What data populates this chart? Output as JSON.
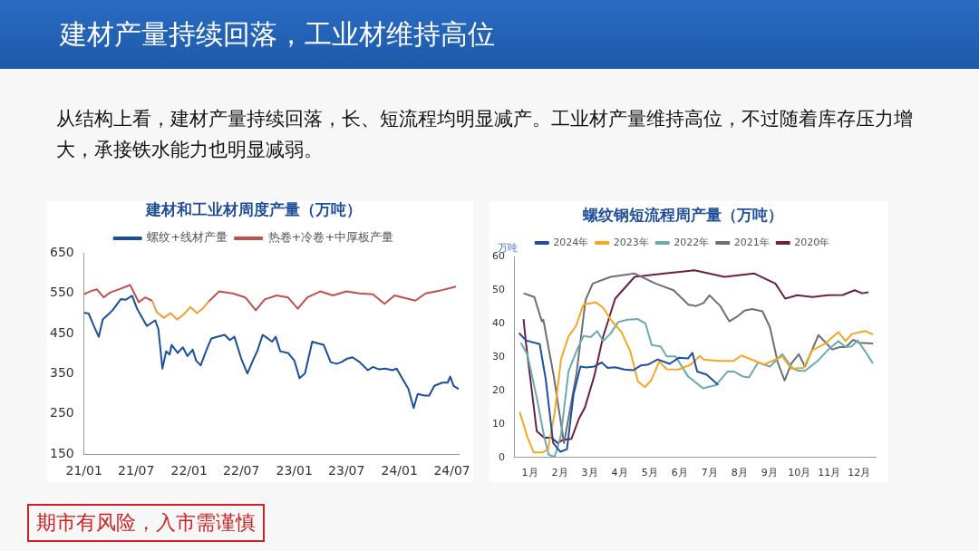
{
  "chart_data": [
    {
      "type": "other",
      "title": "建材产量持续回落，工业材维持高位",
      "subtitle": "从结构上看，建材产量持续回落，长、短流程均明显减产。工业材产量维持高位，不过随着库存压力增大，承接铁水能力也明显减弱。",
      "annotations": [
        "期市有风险，入市需谨慎"
      ]
    },
    {
      "type": "line",
      "title": "建材和工业材周度产量（万吨）",
      "legend": "top",
      "marker": "none",
      "grid": false,
      "xlim": [
        "2021-01-01",
        "2024-07-25"
      ],
      "xticks": [
        {
          "value": "2021-01",
          "label": "21/01"
        },
        {
          "value": "2021-07",
          "label": "21/07"
        },
        {
          "value": "2022-01",
          "label": "22/01"
        },
        {
          "value": "2022-07",
          "label": "22/07"
        },
        {
          "value": "2023-01",
          "label": "23/01"
        },
        {
          "value": "2023-07",
          "label": "23/07"
        },
        {
          "value": "2024-01",
          "label": "24/01"
        },
        {
          "value": "2024-07",
          "label": "24/07"
        }
      ],
      "ylim": [
        150,
        650
      ],
      "yticks": [
        150,
        250,
        350,
        450,
        550,
        650
      ],
      "series": [
        {
          "name": "螺纹+线材产量",
          "color": "#1a4f9c",
          "x": [
            "2021-01-01",
            "2021-01-17",
            "2021-02-04",
            "2021-02-21",
            "2021-03-07",
            "2021-03-25",
            "2021-04-10",
            "2021-05-09",
            "2021-05-25",
            "2021-06-17",
            "2021-07-04",
            "2021-07-22",
            "2021-08-07",
            "2021-09-05",
            "2021-09-16",
            "2021-09-30",
            "2021-10-13",
            "2021-10-25",
            "2021-11-01",
            "2021-11-22",
            "2021-12-10",
            "2021-12-26",
            "2022-01-13",
            "2022-01-25",
            "2022-02-10",
            "2022-02-28",
            "2022-03-19",
            "2022-04-07",
            "2022-05-04",
            "2022-05-22",
            "2022-06-07",
            "2022-07-01",
            "2022-07-22",
            "2022-08-10",
            "2022-08-25",
            "2022-09-13",
            "2022-10-01",
            "2022-10-16",
            "2022-10-28",
            "2022-11-13",
            "2022-12-10",
            "2023-01-01",
            "2023-01-19",
            "2023-02-07",
            "2023-03-04",
            "2023-03-22",
            "2023-04-13",
            "2023-05-07",
            "2023-05-28",
            "2023-06-13",
            "2023-07-01",
            "2023-07-22",
            "2023-08-16",
            "2023-09-13",
            "2023-10-01",
            "2023-10-22",
            "2023-11-13",
            "2023-12-07",
            "2023-12-22",
            "2024-01-10",
            "2024-02-01",
            "2024-02-19",
            "2024-03-04",
            "2024-03-28",
            "2024-04-13",
            "2024-05-01",
            "2024-05-28",
            "2024-06-16",
            "2024-06-25",
            "2024-07-07",
            "2024-07-25"
          ],
          "values": [
            502,
            500,
            469,
            442,
            485,
            497,
            508,
            536,
            534,
            544,
            512,
            489,
            469,
            483,
            461,
            363,
            406,
            398,
            422,
            402,
            416,
            394,
            410,
            383,
            371,
            406,
            438,
            442,
            447,
            434,
            442,
            387,
            351,
            383,
            406,
            447,
            438,
            430,
            442,
            406,
            402,
            383,
            339,
            351,
            430,
            426,
            422,
            379,
            375,
            379,
            387,
            391,
            379,
            359,
            367,
            361,
            363,
            359,
            363,
            339,
            312,
            265,
            300,
            296,
            296,
            320,
            328,
            328,
            343,
            320,
            312
          ]
        },
        {
          "name": "热卷+冷卷+中厚板产量",
          "color": "#c0504d",
          "x": [
            "2021-01-01",
            "2021-01-25",
            "2021-02-15",
            "2021-03-10",
            "2021-04-01",
            "2021-05-01",
            "2021-06-10",
            "2021-07-10",
            "2021-08-01",
            "2021-08-25",
            "2021-09-10",
            "2021-10-05",
            "2021-10-28",
            "2021-11-20",
            "2021-12-12",
            "2022-01-05",
            "2022-01-28",
            "2022-02-18",
            "2022-03-10",
            "2022-04-15",
            "2022-06-01",
            "2022-07-15",
            "2022-08-20",
            "2022-09-20",
            "2022-11-01",
            "2022-12-10",
            "2023-01-13",
            "2023-02-15",
            "2023-04-01",
            "2023-05-15",
            "2023-07-01",
            "2023-08-15",
            "2023-10-01",
            "2023-11-10",
            "2023-12-15",
            "2024-02-25",
            "2024-04-01",
            "2024-05-15",
            "2024-07-15"
          ],
          "values": [
            548,
            556,
            560,
            540,
            552,
            560,
            571,
            528,
            540,
            532,
            null,
            null,
            null,
            null,
            null,
            null,
            null,
            null,
            530,
            555,
            550,
            540,
            508,
            535,
            545,
            540,
            512,
            540,
            555,
            545,
            555,
            550,
            548,
            524,
            545,
            532,
            550,
            556,
            567
          ]
        },
        {
          "color": "#f0a030",
          "x": [
            "2021-08-25",
            "2021-09-10",
            "2021-10-05",
            "2021-10-28",
            "2021-11-20",
            "2021-12-12",
            "2022-01-05",
            "2022-01-28",
            "2022-02-18",
            "2022-03-10"
          ],
          "values": [
            532,
            504,
            489,
            501,
            485,
            497,
            516,
            501,
            513,
            530
          ]
        }
      ]
    },
    {
      "type": "line",
      "title": "螺纹钢短流程周产量（万吨）",
      "ylabel": "万吨",
      "legend": "top",
      "marker": "none",
      "grid": false,
      "xlim": [
        0,
        12.05
      ],
      "xticks": [
        {
          "value": 0.5,
          "label": "1月"
        },
        {
          "value": 1.5,
          "label": "2月"
        },
        {
          "value": 2.5,
          "label": "3月"
        },
        {
          "value": 3.5,
          "label": "4月"
        },
        {
          "value": 4.5,
          "label": "5月"
        },
        {
          "value": 5.5,
          "label": "6月"
        },
        {
          "value": 6.5,
          "label": "7月"
        },
        {
          "value": 7.5,
          "label": "8月"
        },
        {
          "value": 8.5,
          "label": "9月"
        },
        {
          "value": 9.5,
          "label": "10月"
        },
        {
          "value": 10.5,
          "label": "11月"
        },
        {
          "value": 11.5,
          "label": "12月"
        }
      ],
      "ylim": [
        0,
        60
      ],
      "yticks": [
        0,
        10,
        20,
        30,
        40,
        50,
        60
      ],
      "series": [
        {
          "name": "2024年",
          "color": "#1f4ea0",
          "x": [
            0.14,
            0.37,
            0.83,
            1.03,
            1.28,
            1.52,
            1.74,
            1.96,
            2.19,
            2.39,
            2.65,
            2.9,
            3.1,
            3.35,
            3.66,
            3.96,
            4.2,
            4.46,
            4.77,
            5.17,
            5.47,
            5.78,
            5.93,
            6.09,
            6.4,
            6.79
          ],
          "values": [
            37.2,
            35,
            33.9,
            23.4,
            4.3,
            1.7,
            2.5,
            18.9,
            27.2,
            26.9,
            27.2,
            28.4,
            26.8,
            27,
            26.3,
            26.1,
            27.5,
            27.8,
            29.3,
            28,
            29.8,
            29.6,
            31.3,
            25.7,
            24.8,
            21.7
          ]
        },
        {
          "name": "2023年",
          "color": "#f5a623",
          "x": [
            0.16,
            0.42,
            0.63,
            0.93,
            1.11,
            1.33,
            1.54,
            1.79,
            2.04,
            2.29,
            2.7,
            2.95,
            3.2,
            3.56,
            3.86,
            4.11,
            4.34,
            4.55,
            4.82,
            5.07,
            5.47,
            5.88,
            6.18,
            6.3,
            6.81,
            7.31,
            7.57,
            8.32,
            8.93,
            9.23,
            9.64,
            9.94,
            10.34,
            10.8,
            11.05,
            11.25,
            11.71,
            11.96
          ],
          "values": [
            13.6,
            6.1,
            1.5,
            1.5,
            2.5,
            13.4,
            29.3,
            36.2,
            39.3,
            45.7,
            46.4,
            44.8,
            41.2,
            37.5,
            31.6,
            22.7,
            21.1,
            23,
            28.7,
            26.4,
            26.3,
            27.8,
            30.4,
            29.3,
            28.9,
            28.9,
            30.5,
            27.8,
            30.2,
            26.6,
            26.8,
            32.1,
            33.9,
            37.5,
            34.8,
            36.9,
            37.8,
            36.8
          ]
        },
        {
          "name": "2022年",
          "color": "#6aabb0",
          "x": [
            0.2,
            0.42,
            0.73,
            0.98,
            1.13,
            1.33,
            1.54,
            1.79,
            2.09,
            2.29,
            2.53,
            2.75,
            2.95,
            3.2,
            3.45,
            3.76,
            4.11,
            4.36,
            4.57,
            4.87,
            5.07,
            5.37,
            5.78,
            6.28,
            6.71,
            7.11,
            7.31,
            7.62,
            7.82,
            8.12,
            8.52,
            8.93,
            9.28,
            9.48,
            9.69,
            10.14,
            10.45,
            10.8,
            11.05,
            11.25,
            11.45,
            11.76,
            11.96
          ],
          "values": [
            34.3,
            30.7,
            17.9,
            6.1,
            0.8,
            0.2,
            6.6,
            25.7,
            32.5,
            36.3,
            36,
            37.8,
            34.8,
            37.1,
            40.5,
            41.2,
            41.4,
            40.1,
            33.6,
            33.2,
            30.2,
            30.2,
            24.3,
            20.7,
            21.6,
            25.7,
            25.7,
            24.2,
            23.9,
            28.4,
            27.2,
            30.9,
            26.6,
            25.9,
            25.9,
            29.1,
            32.1,
            34.8,
            33,
            33.2,
            35,
            30.9,
            28.1
          ]
        },
        {
          "name": "2021年",
          "color": "#6d6f73",
          "x": [
            0.29,
            0.65,
            0.9,
            0.95,
            1.3,
            1.58,
            1.64,
            2.06,
            2.36,
            2.6,
            3.2,
            4.0,
            4.7,
            5.3,
            5.8,
            6.05,
            6.3,
            6.5,
            6.86,
            7.16,
            7.42,
            7.67,
            7.92,
            8.27,
            8.52,
            8.78,
            9.01,
            9.23,
            9.48,
            9.69,
            10.14,
            10.6,
            10.85,
            11.05,
            11.3,
            11.5,
            11.96
          ],
          "values": [
            49.1,
            48,
            40.7,
            41.2,
            24.3,
            7.9,
            4.3,
            25.2,
            47.1,
            52,
            54,
            55,
            52,
            50,
            45.7,
            45.3,
            46.2,
            48.5,
            45.3,
            40.7,
            42.1,
            43.9,
            44.4,
            43.7,
            38.9,
            28.4,
            23,
            28,
            30.9,
            27.2,
            36.6,
            32.3,
            33,
            33,
            35.2,
            34.3,
            34.1
          ]
        },
        {
          "name": "2020年",
          "color": "#6b2048",
          "x": [
            0.29,
            0.37,
            0.73,
            0.98,
            1.23,
            1.43,
            1.59,
            1.89,
            2.14,
            2.34,
            2.65,
            2.95,
            3.35,
            4.0,
            5.0,
            6.0,
            7.0,
            8.0,
            8.7,
            9.03,
            9.43,
            9.94,
            10.45,
            10.95,
            11.35,
            11.6,
            11.81
          ],
          "values": [
            41.4,
            34.3,
            7.9,
            5.9,
            5.9,
            4.3,
            5.2,
            5.6,
            11.6,
            15,
            24.3,
            36.2,
            47.5,
            54,
            55,
            56,
            54,
            55,
            52,
            47.5,
            48.5,
            48,
            48.5,
            48.6,
            50,
            49.1,
            49.4
          ]
        }
      ]
    }
  ]
}
